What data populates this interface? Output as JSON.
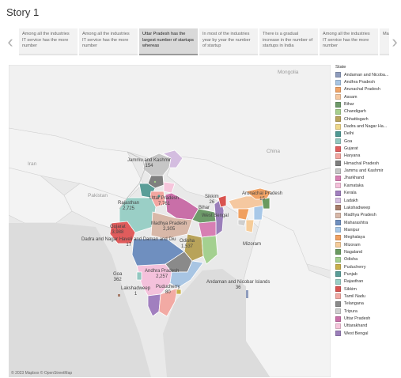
{
  "story_title": "Story 1",
  "story_points": [
    {
      "text": "Among all the industries IT service has the more number",
      "active": false
    },
    {
      "text": "Among all the industries IT service has the more number",
      "active": false
    },
    {
      "text": "Uttar Pradesh has the largest number of startups whereas",
      "active": true
    },
    {
      "text": "In most of the industries year by year the number of startup",
      "active": false
    },
    {
      "text": "There is a gradual increase in the number of startups in India",
      "active": false
    },
    {
      "text": "Among all the industries IT service has the more number",
      "active": false
    },
    {
      "text": "Ma mo st",
      "active": false
    }
  ],
  "icons": {
    "prev": "chevron-left-icon",
    "next": "chevron-right-icon"
  },
  "map": {
    "countries": [
      "Mongolia",
      "China",
      "Pakistan",
      "Iran"
    ],
    "labels": [
      {
        "name": "Jammu and Kashmir",
        "value": "154"
      },
      {
        "name": "Uttar Pradesh",
        "value": "7,761"
      },
      {
        "name": "Rajasthan",
        "value": "2,725"
      },
      {
        "name": "Sikkim",
        "value": "26"
      },
      {
        "name": "Arunachal Pradesh",
        "value": "15"
      },
      {
        "name": "Bihar",
        "value": ""
      },
      {
        "name": "West Bengal",
        "value": ""
      },
      {
        "name": "Gujarat",
        "value": "3,988"
      },
      {
        "name": "Madhya Pradesh",
        "value": "2,305"
      },
      {
        "name": "Mizoram",
        "value": ""
      },
      {
        "name": "Dadra and Nagar Haveli and Daman and Diu",
        "value": "17"
      },
      {
        "name": "Odisha",
        "value": "1,537"
      },
      {
        "name": "Goa",
        "value": "362"
      },
      {
        "name": "Andhra Pradesh",
        "value": "2,257"
      },
      {
        "name": "Puducherry",
        "value": "80"
      },
      {
        "name": "Lakshadweep",
        "value": "1"
      },
      {
        "name": "Andaman and Nicobar Islands",
        "value": "36"
      }
    ],
    "attribution": "© 2023 Mapbox © OpenStreetMap"
  },
  "legend": {
    "title": "State",
    "items": [
      {
        "label": "Andaman and Nicoba...",
        "color": "#8e9cbd"
      },
      {
        "label": "Andhra Pradesh",
        "color": "#a8c5e3"
      },
      {
        "label": "Arunachal Pradesh",
        "color": "#f0a366"
      },
      {
        "label": "Assam",
        "color": "#f5c8a0"
      },
      {
        "label": "Bihar",
        "color": "#6e9b6a"
      },
      {
        "label": "Chandigarh",
        "color": "#a6cf8d"
      },
      {
        "label": "Chhattisgarh",
        "color": "#b8a35a"
      },
      {
        "label": "Dadra and Nagar Ha...",
        "color": "#efd88a"
      },
      {
        "label": "Delhi",
        "color": "#4f9a94"
      },
      {
        "label": "Goa",
        "color": "#92c8c0"
      },
      {
        "label": "Gujarat",
        "color": "#e05c5c"
      },
      {
        "label": "Haryana",
        "color": "#f3a6a0"
      },
      {
        "label": "Himachal Pradesh",
        "color": "#7f7f7f"
      },
      {
        "label": "Jammu and Kashmir",
        "color": "#c6c6c6"
      },
      {
        "label": "Jharkhand",
        "color": "#d77fb3"
      },
      {
        "label": "Karnataka",
        "color": "#f4c1db"
      },
      {
        "label": "Kerala",
        "color": "#a17fbf"
      },
      {
        "label": "Ladakh",
        "color": "#d4bde0"
      },
      {
        "label": "Lakshadweep",
        "color": "#a67c6a"
      },
      {
        "label": "Madhya Pradesh",
        "color": "#d8b8a8"
      },
      {
        "label": "Maharashtra",
        "color": "#6f8fbf"
      },
      {
        "label": "Manipur",
        "color": "#a8c8e8"
      },
      {
        "label": "Meghalaya",
        "color": "#f0a060"
      },
      {
        "label": "Mizoram",
        "color": "#f6cc99"
      },
      {
        "label": "Nagaland",
        "color": "#6a9a60"
      },
      {
        "label": "Odisha",
        "color": "#a4d090"
      },
      {
        "label": "Puducherry",
        "color": "#c9b04a"
      },
      {
        "label": "Punjab",
        "color": "#5a9e98"
      },
      {
        "label": "Rajasthan",
        "color": "#9acfc6"
      },
      {
        "label": "Sikkim",
        "color": "#d9534f"
      },
      {
        "label": "Tamil Nadu",
        "color": "#f2aaa4"
      },
      {
        "label": "Telangana",
        "color": "#8a8a8a"
      },
      {
        "label": "Tripura",
        "color": "#cfcfcf"
      },
      {
        "label": "Uttar Pradesh",
        "color": "#c96fa8"
      },
      {
        "label": "Uttarakhand",
        "color": "#f6c6dc"
      },
      {
        "label": "West Bengal",
        "color": "#9b7fba"
      }
    ]
  }
}
